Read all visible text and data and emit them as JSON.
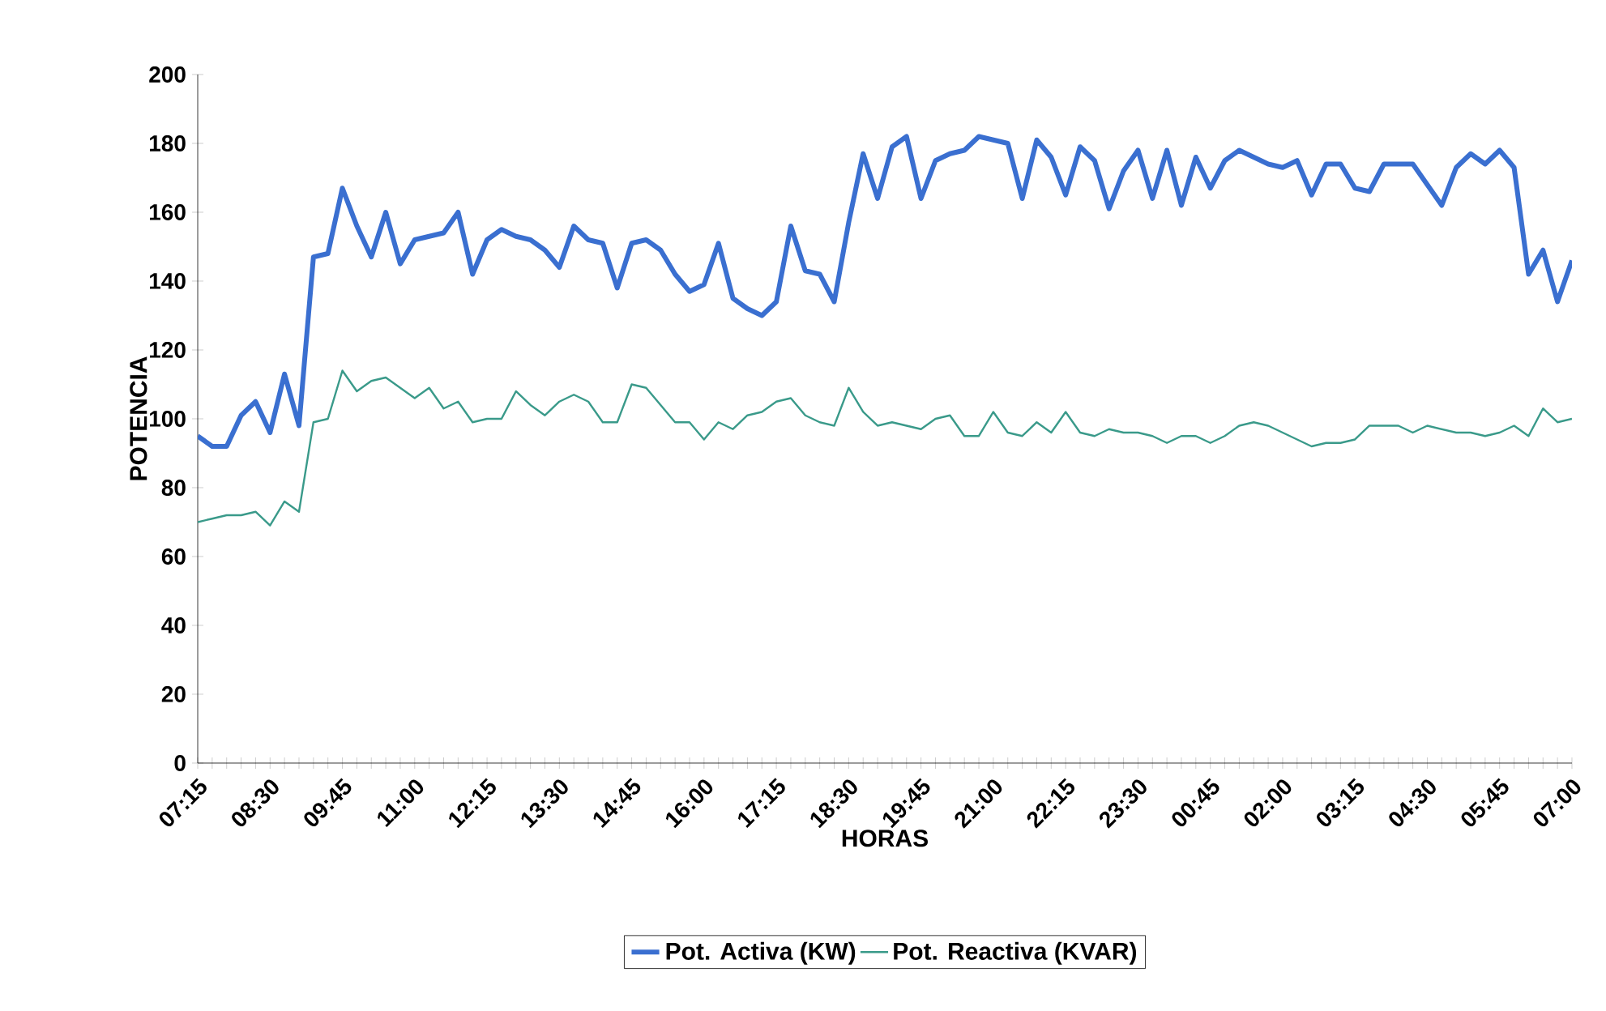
{
  "chart_data": {
    "type": "line",
    "xlabel": "HORAS",
    "ylabel": "POTENCIA",
    "categories": [
      "07:15",
      null,
      null,
      null,
      null,
      "08:30",
      null,
      null,
      null,
      null,
      "09:45",
      null,
      null,
      null,
      null,
      "11:00",
      null,
      null,
      null,
      null,
      "12:15",
      null,
      null,
      null,
      null,
      "13:30",
      null,
      null,
      null,
      null,
      "14:45",
      null,
      null,
      null,
      null,
      "16:00",
      null,
      null,
      null,
      null,
      "17:15",
      null,
      null,
      null,
      null,
      "18:30",
      null,
      null,
      null,
      null,
      "19:45",
      null,
      null,
      null,
      null,
      "21:00",
      null,
      null,
      null,
      null,
      "22:15",
      null,
      null,
      null,
      null,
      "23:30",
      null,
      null,
      null,
      null,
      "00:45",
      null,
      null,
      null,
      null,
      "02:00",
      null,
      null,
      null,
      null,
      "03:15",
      null,
      null,
      null,
      null,
      "04:30",
      null,
      null,
      null,
      null,
      "05:45",
      null,
      null,
      null,
      null,
      "07:00"
    ],
    "series": [
      {
        "name": "Pot. Activa (KW)",
        "color": "#3a6fd0",
        "values": [
          95,
          92,
          92,
          101,
          105,
          96,
          113,
          98,
          147,
          148,
          167,
          156,
          147,
          160,
          145,
          152,
          153,
          154,
          160,
          142,
          152,
          155,
          153,
          152,
          149,
          144,
          156,
          152,
          151,
          138,
          151,
          152,
          149,
          142,
          137,
          139,
          151,
          135,
          132,
          130,
          134,
          156,
          143,
          142,
          134,
          157,
          177,
          164,
          179,
          182,
          164,
          175,
          177,
          178,
          182,
          181,
          180,
          164,
          181,
          176,
          165,
          179,
          175,
          161,
          172,
          178,
          164,
          178,
          162,
          176,
          167,
          175,
          178,
          176,
          174,
          173,
          175,
          165,
          174,
          174,
          167,
          166,
          174,
          174,
          174,
          168,
          162,
          173,
          177,
          174,
          178,
          173,
          142,
          149,
          134,
          146
        ]
      },
      {
        "name": "Pot. Reactiva (KVAR)",
        "color": "#3a9a8a",
        "values": [
          70,
          71,
          72,
          72,
          73,
          69,
          76,
          73,
          99,
          100,
          114,
          108,
          111,
          112,
          109,
          106,
          109,
          103,
          105,
          99,
          100,
          100,
          108,
          104,
          101,
          105,
          107,
          105,
          99,
          99,
          110,
          109,
          104,
          99,
          99,
          94,
          99,
          97,
          101,
          102,
          105,
          106,
          101,
          99,
          98,
          109,
          102,
          98,
          99,
          98,
          97,
          100,
          101,
          95,
          95,
          102,
          96,
          95,
          99,
          96,
          102,
          96,
          95,
          97,
          96,
          96,
          95,
          93,
          95,
          95,
          93,
          95,
          98,
          99,
          98,
          96,
          94,
          92,
          93,
          93,
          94,
          98,
          98,
          98,
          96,
          98,
          97,
          96,
          96,
          95,
          96,
          98,
          95,
          103,
          99,
          100
        ]
      }
    ],
    "ylim": [
      0,
      200
    ],
    "yticks": [
      0,
      20,
      40,
      60,
      80,
      100,
      120,
      140,
      160,
      180,
      200
    ],
    "legend": "bottom"
  }
}
